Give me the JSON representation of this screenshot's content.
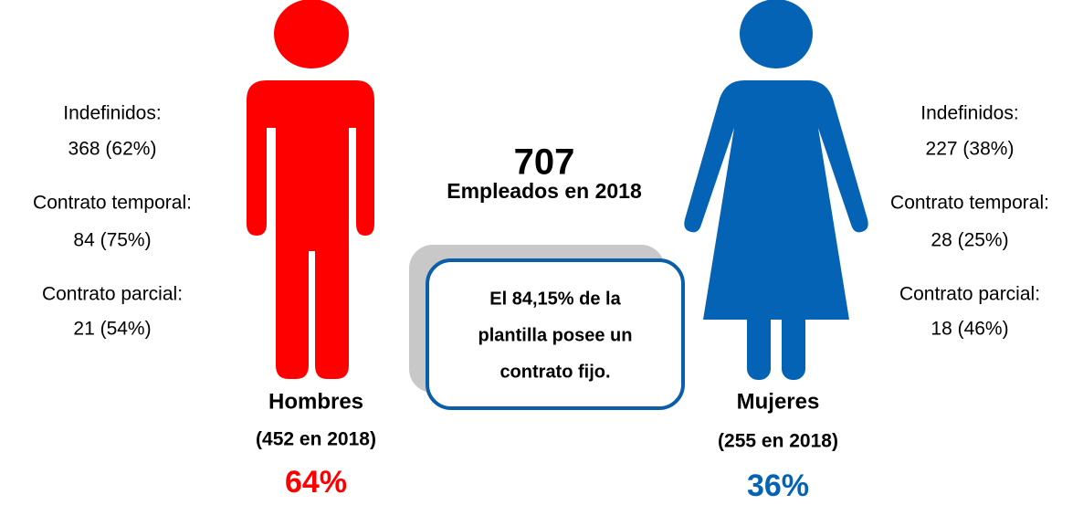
{
  "total": {
    "number": "707",
    "label": "Empleados en 2018"
  },
  "note": {
    "lines": [
      "El 84,15% de la",
      "plantilla posee un",
      "contrato fijo."
    ]
  },
  "men": {
    "stats": [
      "Indefinidos:",
      "368 (62%)",
      "Contrato temporal:",
      "84 (75%)",
      "Contrato parcial:",
      "21 (54%)"
    ],
    "name": "Hombres",
    "count": "(452 en 2018)",
    "share": "64%"
  },
  "women": {
    "stats": [
      "Indefinidos:",
      "227 (38%)",
      "Contrato temporal:",
      "28 (25%)",
      "Contrato parcial:",
      "18 (46%)"
    ],
    "name": "Mujeres",
    "count": "(255 en 2018)",
    "share": "36%"
  }
}
